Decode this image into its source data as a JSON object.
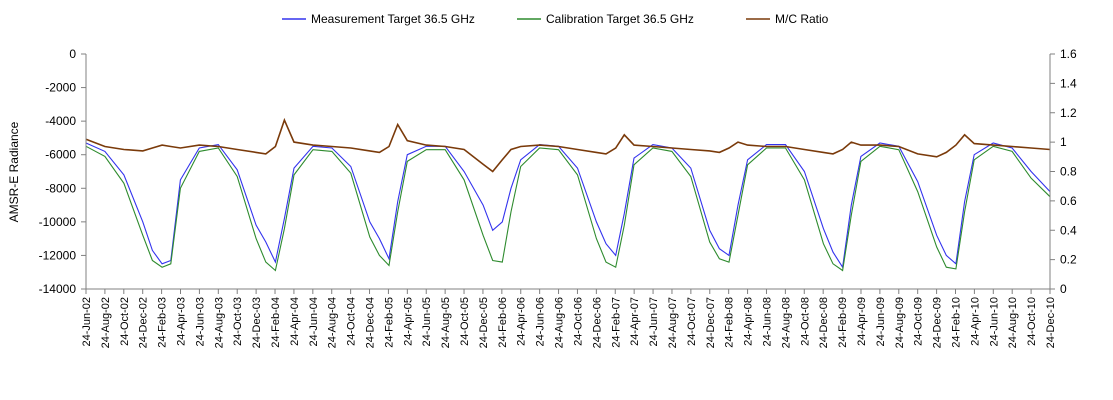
{
  "chart_data": {
    "type": "line",
    "title": "",
    "ylabel": "AMSR-E Radiance",
    "y2label": "",
    "ylim": [
      -14000,
      0
    ],
    "y2lim": [
      0,
      1.6
    ],
    "yticks": [
      0,
      -2000,
      -4000,
      -6000,
      -8000,
      -10000,
      -12000,
      -14000
    ],
    "y2ticks": [
      1.6,
      1.4,
      1.2,
      1,
      0.8,
      0.6,
      0.4,
      0.2,
      0
    ],
    "ytick_labels": [
      "0",
      "-2000",
      "-4000",
      "-6000",
      "-8000",
      "-10000",
      "-12000",
      "-14000"
    ],
    "y2tick_labels": [
      "1.6",
      "1.4",
      "1.2",
      "1",
      "0.8",
      "0.6",
      "0.4",
      "0.2",
      "0"
    ],
    "grid": false,
    "legend_position": "top",
    "x_start": "2002-06-24",
    "x_end": "2010-12-24",
    "x_tick_labels": [
      "24-Jun-02",
      "24-Aug-02",
      "24-Oct-02",
      "24-Dec-02",
      "24-Feb-03",
      "24-Apr-03",
      "24-Jun-03",
      "24-Aug-03",
      "24-Oct-03",
      "24-Dec-03",
      "24-Feb-04",
      "24-Apr-04",
      "24-Jun-04",
      "24-Aug-04",
      "24-Oct-04",
      "24-Dec-04",
      "24-Feb-05",
      "24-Apr-05",
      "24-Jun-05",
      "24-Aug-05",
      "24-Oct-05",
      "24-Dec-05",
      "24-Feb-06",
      "24-Apr-06",
      "24-Jun-06",
      "24-Aug-06",
      "24-Oct-06",
      "24-Dec-06",
      "24-Feb-07",
      "24-Apr-07",
      "24-Jun-07",
      "24-Aug-07",
      "24-Oct-07",
      "24-Dec-07",
      "24-Feb-08",
      "24-Apr-08",
      "24-Jun-08",
      "24-Aug-08",
      "24-Oct-08",
      "24-Dec-08",
      "24-Feb-09",
      "24-Apr-09",
      "24-Jun-09",
      "24-Aug-09",
      "24-Oct-09",
      "24-Dec-09",
      "24-Feb-10",
      "24-Apr-10",
      "24-Jun-10",
      "24-Aug-10",
      "24-Oct-10",
      "24-Dec-10"
    ],
    "series": [
      {
        "name": "Measurement Target 36.5 GHz",
        "axis": "left",
        "color": "#3333ee",
        "x": [
          "2002-06-24",
          "2002-08-24",
          "2002-10-24",
          "2002-12-24",
          "2003-01-24",
          "2003-02-24",
          "2003-03-24",
          "2003-04-24",
          "2003-06-24",
          "2003-08-24",
          "2003-10-24",
          "2003-12-24",
          "2004-01-24",
          "2004-02-24",
          "2004-03-24",
          "2004-04-24",
          "2004-06-24",
          "2004-08-24",
          "2004-10-24",
          "2004-12-24",
          "2005-01-24",
          "2005-02-24",
          "2005-03-24",
          "2005-04-24",
          "2005-06-24",
          "2005-08-24",
          "2005-10-24",
          "2005-12-24",
          "2006-01-24",
          "2006-02-24",
          "2006-03-24",
          "2006-04-24",
          "2006-06-24",
          "2006-08-24",
          "2006-10-24",
          "2006-12-24",
          "2007-01-24",
          "2007-02-24",
          "2007-03-24",
          "2007-04-24",
          "2007-06-24",
          "2007-08-24",
          "2007-10-24",
          "2007-12-24",
          "2008-01-24",
          "2008-02-24",
          "2008-03-24",
          "2008-04-24",
          "2008-06-24",
          "2008-08-24",
          "2008-10-24",
          "2008-12-24",
          "2009-01-24",
          "2009-02-24",
          "2009-03-24",
          "2009-04-24",
          "2009-06-24",
          "2009-08-24",
          "2009-10-24",
          "2009-12-24",
          "2010-01-24",
          "2010-02-24",
          "2010-03-24",
          "2010-04-24",
          "2010-06-24",
          "2010-08-24",
          "2010-10-24",
          "2010-12-24"
        ],
        "y": [
          -5300,
          -5800,
          -7200,
          -10000,
          -11700,
          -12500,
          -12300,
          -7500,
          -5600,
          -5400,
          -6900,
          -10200,
          -11200,
          -12400,
          -9800,
          -6800,
          -5500,
          -5600,
          -6700,
          -10000,
          -11000,
          -12200,
          -8800,
          -6000,
          -5500,
          -5500,
          -7000,
          -9000,
          -10500,
          -10000,
          -8000,
          -6300,
          -5400,
          -5500,
          -6800,
          -10000,
          -11300,
          -12000,
          -9500,
          -6200,
          -5400,
          -5600,
          -6800,
          -10500,
          -11600,
          -12000,
          -9000,
          -6300,
          -5400,
          -5400,
          -7000,
          -10400,
          -11800,
          -12700,
          -9000,
          -6100,
          -5300,
          -5500,
          -7600,
          -10800,
          -12000,
          -12500,
          -8800,
          -6000,
          -5300,
          -5600,
          -7000,
          -8200
        ]
      },
      {
        "name": "Calibration Target 36.5 GHz",
        "axis": "left",
        "color": "#2e8b2e",
        "x": [
          "2002-06-24",
          "2002-08-24",
          "2002-10-24",
          "2002-12-24",
          "2003-01-24",
          "2003-02-24",
          "2003-03-24",
          "2003-04-24",
          "2003-06-24",
          "2003-08-24",
          "2003-10-24",
          "2003-12-24",
          "2004-01-24",
          "2004-02-24",
          "2004-03-24",
          "2004-04-24",
          "2004-06-24",
          "2004-08-24",
          "2004-10-24",
          "2004-12-24",
          "2005-01-24",
          "2005-02-24",
          "2005-03-24",
          "2005-04-24",
          "2005-06-24",
          "2005-08-24",
          "2005-10-24",
          "2005-12-24",
          "2006-01-24",
          "2006-02-24",
          "2006-03-24",
          "2006-04-24",
          "2006-06-24",
          "2006-08-24",
          "2006-10-24",
          "2006-12-24",
          "2007-01-24",
          "2007-02-24",
          "2007-03-24",
          "2007-04-24",
          "2007-06-24",
          "2007-08-24",
          "2007-10-24",
          "2007-12-24",
          "2008-01-24",
          "2008-02-24",
          "2008-03-24",
          "2008-04-24",
          "2008-06-24",
          "2008-08-24",
          "2008-10-24",
          "2008-12-24",
          "2009-01-24",
          "2009-02-24",
          "2009-03-24",
          "2009-04-24",
          "2009-06-24",
          "2009-08-24",
          "2009-10-24",
          "2009-12-24",
          "2010-01-24",
          "2010-02-24",
          "2010-03-24",
          "2010-04-24",
          "2010-06-24",
          "2010-08-24",
          "2010-10-24",
          "2010-12-24"
        ],
        "y": [
          -5500,
          -6100,
          -7700,
          -10800,
          -12300,
          -12700,
          -12500,
          -8000,
          -5800,
          -5600,
          -7300,
          -11000,
          -12400,
          -12900,
          -10400,
          -7200,
          -5700,
          -5800,
          -7100,
          -10900,
          -12000,
          -12600,
          -9400,
          -6400,
          -5700,
          -5700,
          -7500,
          -10800,
          -12300,
          -12400,
          -9400,
          -6700,
          -5600,
          -5700,
          -7200,
          -11000,
          -12400,
          -12700,
          -10200,
          -6600,
          -5600,
          -5800,
          -7300,
          -11200,
          -12200,
          -12400,
          -9600,
          -6600,
          -5600,
          -5600,
          -7500,
          -11300,
          -12500,
          -12900,
          -9600,
          -6400,
          -5500,
          -5700,
          -8200,
          -11500,
          -12700,
          -12800,
          -9400,
          -6300,
          -5500,
          -5800,
          -7400,
          -8500
        ]
      },
      {
        "name": "M/C Ratio",
        "axis": "right",
        "color": "#7a3a0a",
        "x": [
          "2002-06-24",
          "2002-08-24",
          "2002-10-24",
          "2002-12-24",
          "2003-01-24",
          "2003-02-24",
          "2003-03-24",
          "2003-04-24",
          "2003-06-24",
          "2003-08-24",
          "2003-10-24",
          "2003-12-24",
          "2004-01-24",
          "2004-02-24",
          "2004-03-24",
          "2004-04-24",
          "2004-06-24",
          "2004-08-24",
          "2004-10-24",
          "2004-12-24",
          "2005-01-24",
          "2005-02-24",
          "2005-03-24",
          "2005-04-24",
          "2005-06-24",
          "2005-08-24",
          "2005-10-24",
          "2005-12-24",
          "2006-01-24",
          "2006-02-24",
          "2006-03-24",
          "2006-04-24",
          "2006-06-24",
          "2006-08-24",
          "2006-10-24",
          "2006-12-24",
          "2007-01-24",
          "2007-02-24",
          "2007-03-24",
          "2007-04-24",
          "2007-06-24",
          "2007-08-24",
          "2007-10-24",
          "2007-12-24",
          "2008-01-24",
          "2008-02-24",
          "2008-03-24",
          "2008-04-24",
          "2008-06-24",
          "2008-08-24",
          "2008-10-24",
          "2008-12-24",
          "2009-01-24",
          "2009-02-24",
          "2009-03-24",
          "2009-04-24",
          "2009-06-24",
          "2009-08-24",
          "2009-10-24",
          "2009-12-24",
          "2010-01-24",
          "2010-02-24",
          "2010-03-24",
          "2010-04-24",
          "2010-06-24",
          "2010-08-24",
          "2010-10-24",
          "2010-12-24"
        ],
        "y": [
          1.02,
          0.97,
          0.95,
          0.94,
          0.96,
          0.98,
          0.97,
          0.96,
          0.98,
          0.97,
          0.95,
          0.93,
          0.92,
          0.97,
          1.15,
          1.0,
          0.98,
          0.97,
          0.96,
          0.94,
          0.93,
          0.97,
          1.12,
          1.01,
          0.98,
          0.97,
          0.95,
          0.85,
          0.8,
          0.88,
          0.95,
          0.97,
          0.98,
          0.97,
          0.95,
          0.93,
          0.92,
          0.96,
          1.05,
          0.98,
          0.97,
          0.96,
          0.95,
          0.94,
          0.93,
          0.96,
          1.0,
          0.98,
          0.97,
          0.97,
          0.95,
          0.93,
          0.92,
          0.95,
          1.0,
          0.98,
          0.98,
          0.97,
          0.92,
          0.9,
          0.93,
          0.98,
          1.05,
          0.99,
          0.98,
          0.97,
          0.96,
          0.95
        ]
      }
    ]
  }
}
